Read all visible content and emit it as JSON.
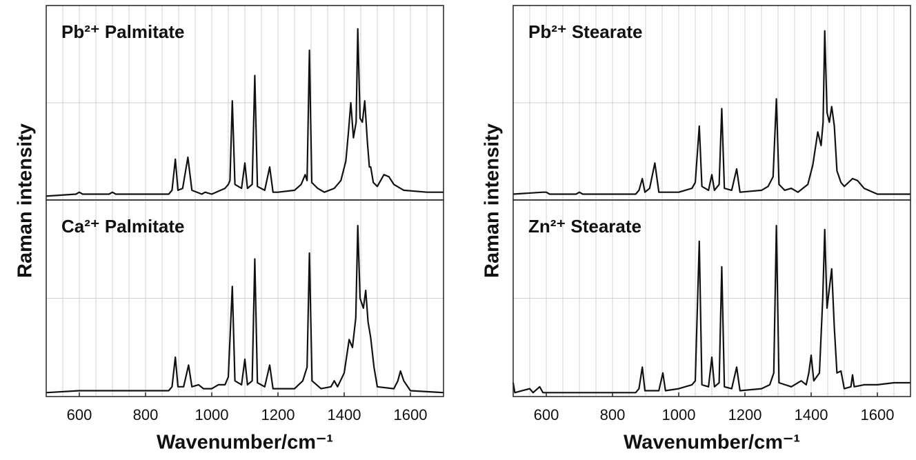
{
  "chart_data": [
    {
      "type": "line",
      "title": "Pb²⁺ Palmitate",
      "ylabel": "Raman intensity",
      "color": "#111111",
      "xlim": [
        500,
        1700
      ],
      "ylim": [
        0,
        100
      ],
      "grid_x": [
        550,
        600,
        650,
        700,
        750,
        800,
        850,
        900,
        950,
        1000,
        1050,
        1100,
        1150,
        1200,
        1250,
        1300,
        1350,
        1400,
        1450,
        1500,
        1550,
        1600,
        1650
      ],
      "grid_y": [
        50
      ],
      "x": [
        500,
        590,
        600,
        610,
        690,
        700,
        710,
        870,
        880,
        890,
        898,
        912,
        928,
        940,
        970,
        980,
        1000,
        1040,
        1050,
        1055,
        1062,
        1070,
        1090,
        1100,
        1108,
        1122,
        1130,
        1138,
        1160,
        1175,
        1185,
        1200,
        1250,
        1270,
        1282,
        1288,
        1295,
        1302,
        1320,
        1340,
        1370,
        1390,
        1405,
        1413,
        1420,
        1428,
        1436,
        1441,
        1448,
        1455,
        1462,
        1470,
        1476,
        1480,
        1488,
        1500,
        1520,
        1535,
        1550,
        1580,
        1650,
        1700
      ],
      "values": [
        2,
        3,
        4,
        3,
        3,
        4,
        3,
        3,
        5,
        21,
        5,
        6,
        22,
        5,
        3,
        4,
        3,
        6,
        8,
        10,
        51,
        8,
        6,
        19,
        6,
        8,
        64,
        7,
        5,
        17,
        4,
        4,
        5,
        8,
        13,
        10,
        77,
        9,
        6,
        4,
        6,
        10,
        20,
        35,
        50,
        32,
        40,
        88,
        42,
        40,
        51,
        30,
        17,
        17,
        9,
        7,
        13,
        12,
        8,
        5,
        4,
        4
      ]
    },
    {
      "type": "line",
      "title": "Ca²⁺ Palmitate",
      "xlabel": "Wavenumber/cm⁻¹",
      "color": "#111111",
      "xlim": [
        500,
        1700
      ],
      "ylim": [
        0,
        100
      ],
      "xticks": [
        600,
        800,
        1000,
        1200,
        1400,
        1600
      ],
      "grid_x": [
        550,
        600,
        650,
        700,
        750,
        800,
        850,
        900,
        950,
        1000,
        1050,
        1100,
        1150,
        1200,
        1250,
        1300,
        1350,
        1400,
        1450,
        1500,
        1550,
        1600,
        1650
      ],
      "grid_y": [
        50
      ],
      "x": [
        500,
        600,
        700,
        870,
        880,
        890,
        898,
        915,
        930,
        940,
        960,
        975,
        1000,
        1020,
        1040,
        1050,
        1062,
        1070,
        1090,
        1100,
        1108,
        1122,
        1130,
        1138,
        1160,
        1175,
        1185,
        1250,
        1275,
        1288,
        1295,
        1303,
        1330,
        1360,
        1370,
        1380,
        1400,
        1415,
        1425,
        1435,
        1441,
        1448,
        1458,
        1465,
        1472,
        1480,
        1490,
        1500,
        1550,
        1562,
        1570,
        1580,
        1600,
        1700
      ],
      "values": [
        2,
        3,
        3,
        3,
        5,
        20,
        5,
        5,
        16,
        5,
        6,
        4,
        4,
        6,
        6,
        10,
        56,
        8,
        6,
        19,
        6,
        8,
        70,
        7,
        5,
        16,
        4,
        4,
        8,
        15,
        73,
        8,
        4,
        5,
        8,
        5,
        12,
        29,
        25,
        40,
        87,
        50,
        45,
        54,
        38,
        30,
        15,
        5,
        4,
        8,
        13,
        8,
        3,
        2
      ]
    },
    {
      "type": "line",
      "title": "Pb²⁺ Stearate",
      "ylabel": "Raman intensity",
      "color": "#111111",
      "xlim": [
        500,
        1700
      ],
      "ylim": [
        0,
        100
      ],
      "grid_x": [
        550,
        600,
        650,
        700,
        750,
        800,
        850,
        900,
        950,
        1000,
        1050,
        1100,
        1150,
        1200,
        1250,
        1300,
        1350,
        1400,
        1450,
        1500,
        1550,
        1600,
        1650
      ],
      "grid_y": [
        50
      ],
      "x": [
        500,
        590,
        600,
        610,
        690,
        700,
        710,
        870,
        880,
        890,
        898,
        912,
        928,
        940,
        1000,
        1040,
        1050,
        1062,
        1070,
        1090,
        1100,
        1108,
        1122,
        1130,
        1138,
        1160,
        1175,
        1185,
        1250,
        1270,
        1285,
        1295,
        1303,
        1320,
        1340,
        1360,
        1390,
        1405,
        1420,
        1430,
        1436,
        1441,
        1448,
        1455,
        1462,
        1470,
        1478,
        1490,
        1500,
        1525,
        1540,
        1560,
        1600,
        1700
      ],
      "values": [
        3,
        4,
        4,
        3,
        3,
        4,
        3,
        3,
        5,
        11,
        4,
        6,
        19,
        4,
        4,
        6,
        9,
        38,
        7,
        5,
        13,
        5,
        8,
        47,
        6,
        5,
        16,
        4,
        5,
        7,
        12,
        52,
        8,
        5,
        6,
        4,
        8,
        18,
        35,
        28,
        40,
        87,
        45,
        40,
        48,
        38,
        15,
        9,
        7,
        11,
        10,
        6,
        3,
        3
      ]
    },
    {
      "type": "line",
      "title": "Zn²⁺ Stearate",
      "xlabel": "Wavenumber/cm⁻¹",
      "color": "#111111",
      "xlim": [
        500,
        1700
      ],
      "ylim": [
        0,
        100
      ],
      "xticks": [
        600,
        800,
        1000,
        1200,
        1400,
        1600
      ],
      "grid_x": [
        550,
        600,
        650,
        700,
        750,
        800,
        850,
        900,
        950,
        1000,
        1050,
        1100,
        1150,
        1200,
        1250,
        1300,
        1350,
        1400,
        1450,
        1500,
        1550,
        1600,
        1650
      ],
      "grid_y": [
        50
      ],
      "x": [
        500,
        505,
        550,
        560,
        580,
        590,
        700,
        870,
        880,
        890,
        898,
        940,
        952,
        960,
        1000,
        1040,
        1050,
        1062,
        1070,
        1090,
        1100,
        1108,
        1122,
        1130,
        1138,
        1160,
        1175,
        1185,
        1250,
        1275,
        1287,
        1295,
        1303,
        1340,
        1370,
        1385,
        1393,
        1400,
        1408,
        1425,
        1435,
        1441,
        1448,
        1455,
        1462,
        1470,
        1478,
        1490,
        1500,
        1520,
        1525,
        1530,
        1560,
        1600,
        1650,
        1700
      ],
      "values": [
        7,
        2,
        4,
        2,
        5,
        2,
        2,
        2,
        4,
        15,
        3,
        3,
        12,
        3,
        4,
        6,
        8,
        79,
        6,
        5,
        20,
        5,
        7,
        66,
        5,
        4,
        15,
        3,
        4,
        6,
        12,
        87,
        7,
        5,
        8,
        6,
        12,
        21,
        8,
        12,
        50,
        85,
        45,
        55,
        65,
        35,
        12,
        13,
        4,
        5,
        11,
        5,
        6,
        6,
        7,
        7
      ]
    }
  ]
}
